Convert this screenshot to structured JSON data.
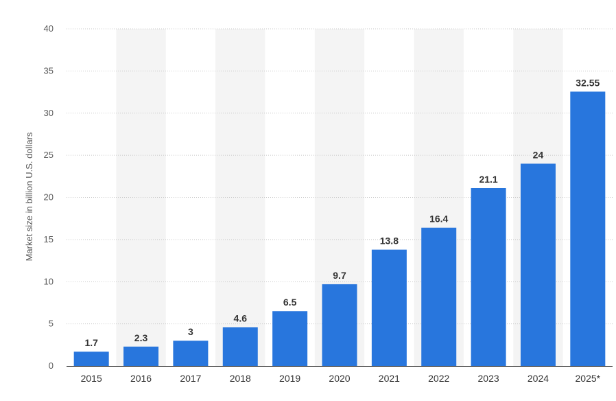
{
  "chart_data": {
    "type": "bar",
    "title": "",
    "xlabel": "",
    "ylabel": "Market size in billion U.S. dollars",
    "categories": [
      "2015",
      "2016",
      "2017",
      "2018",
      "2019",
      "2020",
      "2021",
      "2022",
      "2023",
      "2024",
      "2025*"
    ],
    "values": [
      1.7,
      2.3,
      3,
      4.6,
      6.5,
      9.7,
      13.8,
      16.4,
      21.1,
      24,
      32.55
    ],
    "value_labels": [
      "1.7",
      "2.3",
      "3",
      "4.6",
      "6.5",
      "9.7",
      "13.8",
      "16.4",
      "21.1",
      "24",
      "32.55"
    ],
    "ylim": [
      0,
      40
    ],
    "yticks": [
      0,
      5,
      10,
      15,
      20,
      25,
      30,
      35,
      40
    ],
    "grid": true,
    "grid_style": "dotted-horizontal",
    "alternating_column_shading": true,
    "colors": {
      "bar": "#2876dd",
      "band": "#f4f4f4",
      "grid": "#c8c8c8",
      "axis": "#333333"
    }
  }
}
